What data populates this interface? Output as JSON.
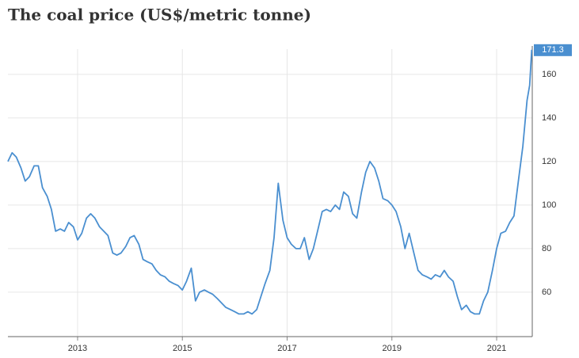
{
  "chart_data": {
    "type": "line",
    "title": "The coal price (US$/metric tonne)",
    "xlim": [
      2011.67,
      2021.68
    ],
    "xticks": [
      2013,
      2015,
      2017,
      2019,
      2021
    ],
    "ylim": [
      39.6,
      171.6
    ],
    "yticks": [
      60,
      80,
      100,
      120,
      140,
      160
    ],
    "grid": true,
    "series": [
      {
        "name": "Coal",
        "color": "#4a8fd0",
        "x": [
          2011.67,
          2011.75,
          2011.83,
          2011.92,
          2012.0,
          2012.08,
          2012.17,
          2012.25,
          2012.33,
          2012.42,
          2012.5,
          2012.58,
          2012.67,
          2012.75,
          2012.83,
          2012.92,
          2013.0,
          2013.08,
          2013.17,
          2013.25,
          2013.33,
          2013.42,
          2013.5,
          2013.58,
          2013.67,
          2013.75,
          2013.83,
          2013.92,
          2014.0,
          2014.08,
          2014.17,
          2014.25,
          2014.33,
          2014.42,
          2014.5,
          2014.58,
          2014.67,
          2014.75,
          2014.83,
          2014.92,
          2015.0,
          2015.08,
          2015.17,
          2015.25,
          2015.33,
          2015.42,
          2015.5,
          2015.58,
          2015.67,
          2015.75,
          2015.83,
          2015.92,
          2016.0,
          2016.08,
          2016.17,
          2016.25,
          2016.33,
          2016.42,
          2016.5,
          2016.58,
          2016.67,
          2016.75,
          2016.83,
          2016.92,
          2017.0,
          2017.08,
          2017.17,
          2017.25,
          2017.33,
          2017.42,
          2017.5,
          2017.58,
          2017.67,
          2017.75,
          2017.83,
          2017.92,
          2018.0,
          2018.08,
          2018.17,
          2018.25,
          2018.33,
          2018.42,
          2018.5,
          2018.58,
          2018.67,
          2018.75,
          2018.83,
          2018.92,
          2019.0,
          2019.08,
          2019.17,
          2019.25,
          2019.33,
          2019.42,
          2019.5,
          2019.58,
          2019.67,
          2019.75,
          2019.83,
          2019.92,
          2020.0,
          2020.08,
          2020.17,
          2020.25,
          2020.33,
          2020.42,
          2020.5,
          2020.58,
          2020.67,
          2020.75,
          2020.83,
          2020.92,
          2021.0,
          2021.08,
          2021.17,
          2021.25,
          2021.33,
          2021.42,
          2021.5,
          2021.58,
          2021.63,
          2021.67
        ],
        "values": [
          120,
          124,
          122,
          117,
          111,
          113,
          118,
          118,
          108,
          104,
          98,
          88,
          89,
          88,
          92,
          90,
          84,
          87,
          94,
          96,
          94,
          90,
          88,
          86,
          78,
          77,
          78,
          81,
          85,
          86,
          82,
          75,
          74,
          73,
          70,
          68,
          67,
          65,
          64,
          63,
          61,
          65,
          71,
          56,
          60,
          61,
          60,
          59,
          57,
          55,
          53,
          52,
          51,
          50,
          50,
          51,
          50,
          52,
          58,
          64,
          70,
          85,
          110,
          93,
          85,
          82,
          80,
          80,
          85,
          75,
          80,
          88,
          97,
          98,
          97,
          100,
          98,
          106,
          104,
          96,
          94,
          106,
          115,
          120,
          117,
          111,
          103,
          102,
          100,
          97,
          90,
          80,
          87,
          78,
          70,
          68,
          67,
          66,
          68,
          67,
          70,
          67,
          65,
          58,
          52,
          54,
          51,
          50,
          50,
          56,
          60,
          70,
          80,
          87,
          88,
          92,
          95,
          112,
          127,
          148,
          155,
          171.3
        ]
      }
    ]
  }
}
